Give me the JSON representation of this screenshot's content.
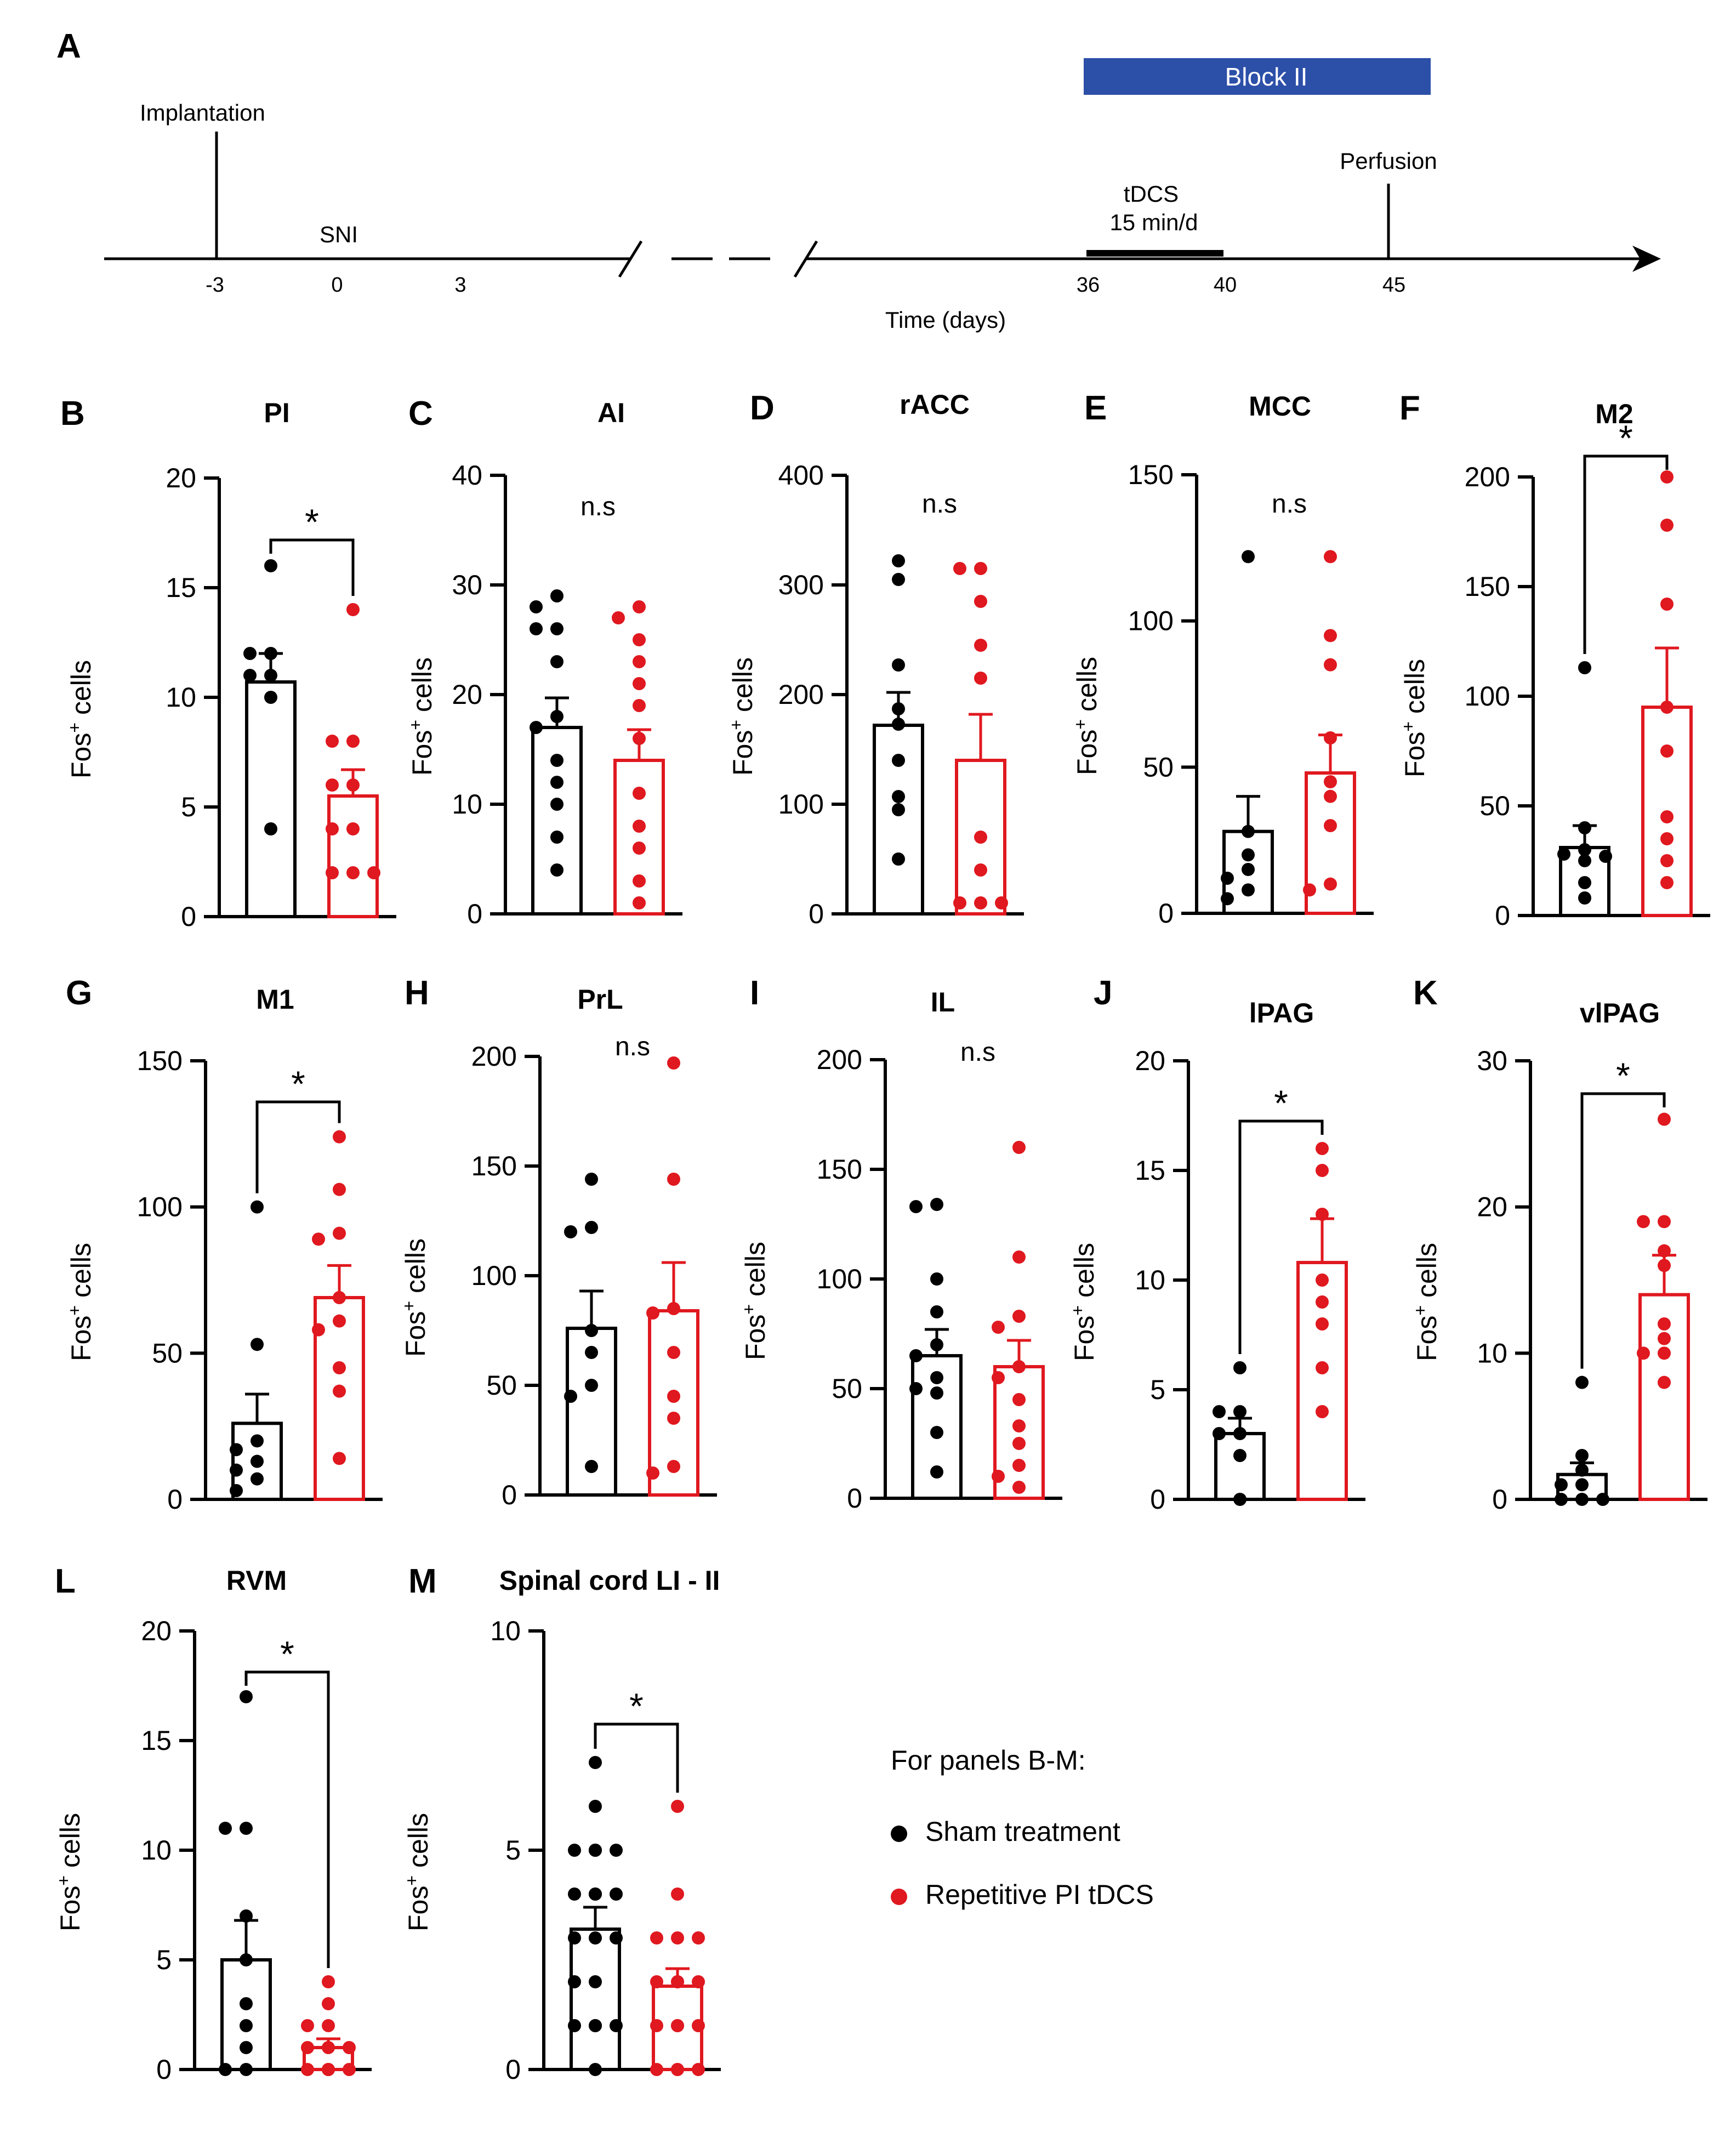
{
  "colors": {
    "sham": "#000000",
    "tdcs": "#e0181f",
    "block": "#2c4fa8",
    "tdcs_label": "#2b4aa3",
    "red_label": "#d8262b"
  },
  "timeline": {
    "panel_letter": "A",
    "block_label": "Block II",
    "implantation_label": "Implantation",
    "sni_label": "SNI",
    "tdcs_label": "tDCS",
    "tdcs_sub": "15 min/d",
    "perfusion_label": "Perfusion",
    "xlabel": "Time (days)",
    "ticks": [
      "-3",
      "0",
      "3",
      "36",
      "40",
      "45"
    ]
  },
  "legend": {
    "title": "For panels B-M:",
    "sham": "Sham treatment",
    "tdcs": "Repetitive PI tDCS"
  },
  "chart_data": [
    {
      "letter": "B",
      "title": "PI",
      "type": "bar",
      "ylabel": "Fos",
      "ylabel_sup": "+",
      "ylabel_rest": " cells",
      "ylim": [
        0,
        20
      ],
      "yticks": [
        0,
        5,
        10,
        15,
        20
      ],
      "sig": "*",
      "categories": [
        "Sham treatment",
        "Repetitive PI tDCS"
      ],
      "series": [
        {
          "name": "Sham treatment",
          "mean": 10.7,
          "sem": 1.3,
          "points": [
            16,
            12,
            12,
            11,
            11,
            10,
            4
          ]
        },
        {
          "name": "Repetitive PI tDCS",
          "mean": 5.5,
          "sem": 1.2,
          "points": [
            14,
            8,
            8,
            6,
            6,
            4,
            4,
            2,
            2,
            2
          ]
        }
      ]
    },
    {
      "letter": "C",
      "title": "AI",
      "type": "bar",
      "ylabel": "Fos",
      "ylabel_sup": "+",
      "ylabel_rest": " cells",
      "ylim": [
        0,
        40
      ],
      "yticks": [
        0,
        10,
        20,
        30,
        40
      ],
      "sig": "n.s",
      "categories": [
        "Sham treatment",
        "Repetitive PI tDCS"
      ],
      "series": [
        {
          "name": "Sham treatment",
          "mean": 17,
          "sem": 2.7,
          "points": [
            29,
            28,
            26,
            26,
            23,
            18,
            17,
            14,
            12,
            10,
            7,
            4
          ]
        },
        {
          "name": "Repetitive PI tDCS",
          "mean": 14,
          "sem": 2.8,
          "points": [
            28,
            27,
            25,
            23,
            21,
            19,
            16,
            11,
            8,
            6,
            3,
            1
          ]
        }
      ]
    },
    {
      "letter": "D",
      "title": "rACC",
      "type": "bar",
      "ylabel": "Fos",
      "ylabel_sup": "+",
      "ylabel_rest": " cells",
      "ylim": [
        0,
        400
      ],
      "yticks": [
        0,
        100,
        200,
        300,
        400
      ],
      "sig": "n.s",
      "categories": [
        "Sham treatment",
        "Repetitive PI tDCS"
      ],
      "series": [
        {
          "name": "Sham treatment",
          "mean": 172,
          "sem": 30,
          "points": [
            322,
            305,
            227,
            187,
            173,
            140,
            107,
            95,
            50
          ]
        },
        {
          "name": "Repetitive PI tDCS",
          "mean": 140,
          "sem": 42,
          "points": [
            315,
            315,
            285,
            245,
            215,
            70,
            40,
            10,
            10,
            10
          ]
        }
      ]
    },
    {
      "letter": "E",
      "title": "MCC",
      "type": "bar",
      "ylabel": "Fos",
      "ylabel_sup": "+",
      "ylabel_rest": " cells",
      "ylim": [
        0,
        150
      ],
      "yticks": [
        0,
        50,
        100,
        150
      ],
      "sig": "n.s",
      "categories": [
        "Sham treatment",
        "Repetitive PI tDCS"
      ],
      "series": [
        {
          "name": "Sham treatment",
          "mean": 28,
          "sem": 12,
          "points": [
            122,
            28,
            20,
            15,
            12,
            8,
            5
          ]
        },
        {
          "name": "Repetitive PI tDCS",
          "mean": 48,
          "sem": 13,
          "points": [
            122,
            95,
            85,
            60,
            45,
            40,
            30,
            10,
            8
          ]
        }
      ]
    },
    {
      "letter": "F",
      "title": "M2",
      "type": "bar",
      "ylabel": "Fos",
      "ylabel_sup": "+",
      "ylabel_rest": " cells",
      "ylim": [
        0,
        200
      ],
      "yticks": [
        0,
        50,
        100,
        150,
        200
      ],
      "sig": "*",
      "categories": [
        "Sham treatment",
        "Repetitive PI tDCS"
      ],
      "series": [
        {
          "name": "Sham treatment",
          "mean": 31,
          "sem": 10,
          "points": [
            113,
            40,
            30,
            28,
            27,
            25,
            15,
            8
          ]
        },
        {
          "name": "Repetitive PI tDCS",
          "mean": 95,
          "sem": 27,
          "points": [
            200,
            178,
            142,
            95,
            75,
            45,
            35,
            25,
            15
          ]
        }
      ]
    },
    {
      "letter": "G",
      "title": "M1",
      "type": "bar",
      "ylabel": "Fos",
      "ylabel_sup": "+",
      "ylabel_rest": " cells",
      "ylim": [
        0,
        150
      ],
      "yticks": [
        0,
        50,
        100,
        150
      ],
      "sig": "*",
      "categories": [
        "Sham treatment",
        "Repetitive PI tDCS"
      ],
      "series": [
        {
          "name": "Sham treatment",
          "mean": 26,
          "sem": 10,
          "points": [
            100,
            53,
            20,
            17,
            13,
            10,
            7,
            3
          ]
        },
        {
          "name": "Repetitive PI tDCS",
          "mean": 69,
          "sem": 11,
          "points": [
            124,
            106,
            91,
            89,
            69,
            61,
            58,
            45,
            37,
            14
          ]
        }
      ]
    },
    {
      "letter": "H",
      "title": "PrL",
      "type": "bar",
      "ylabel": "Fos",
      "ylabel_sup": "+",
      "ylabel_rest": " cells",
      "ylim": [
        0,
        200
      ],
      "yticks": [
        0,
        50,
        100,
        150,
        200
      ],
      "sig": "n.s",
      "categories": [
        "Sham treatment",
        "Repetitive PI tDCS"
      ],
      "series": [
        {
          "name": "Sham treatment",
          "mean": 76,
          "sem": 17,
          "points": [
            144,
            122,
            120,
            75,
            65,
            50,
            45,
            13
          ]
        },
        {
          "name": "Repetitive PI tDCS",
          "mean": 84,
          "sem": 22,
          "points": [
            197,
            144,
            85,
            83,
            65,
            45,
            35,
            13,
            10
          ]
        }
      ]
    },
    {
      "letter": "I",
      "title": "IL",
      "type": "bar",
      "ylabel": "Fos",
      "ylabel_sup": "+",
      "ylabel_rest": " cells",
      "ylim": [
        0,
        200
      ],
      "yticks": [
        0,
        50,
        100,
        150,
        200
      ],
      "sig": "n.s",
      "categories": [
        "Sham treatment",
        "Repetitive PI tDCS"
      ],
      "series": [
        {
          "name": "Sham treatment",
          "mean": 65,
          "sem": 12,
          "points": [
            134,
            133,
            100,
            85,
            70,
            65,
            55,
            50,
            48,
            30,
            12
          ]
        },
        {
          "name": "Repetitive PI tDCS",
          "mean": 60,
          "sem": 12,
          "points": [
            160,
            110,
            83,
            78,
            60,
            55,
            45,
            33,
            25,
            15,
            10,
            5
          ]
        }
      ]
    },
    {
      "letter": "J",
      "title": "lPAG",
      "type": "bar",
      "ylabel": "Fos",
      "ylabel_sup": "+",
      "ylabel_rest": " cells",
      "ylim": [
        0,
        20
      ],
      "yticks": [
        0,
        5,
        10,
        15,
        20
      ],
      "sig": "*",
      "categories": [
        "Sham treatment",
        "Repetitive PI tDCS"
      ],
      "series": [
        {
          "name": "Sham treatment",
          "mean": 3,
          "sem": 0.7,
          "points": [
            6,
            4,
            4,
            3,
            3,
            2,
            0
          ]
        },
        {
          "name": "Repetitive PI tDCS",
          "mean": 10.8,
          "sem": 2,
          "points": [
            16,
            15,
            13,
            10,
            9,
            8,
            6,
            4
          ]
        }
      ]
    },
    {
      "letter": "K",
      "title": "vlPAG",
      "type": "bar",
      "ylabel": "Fos",
      "ylabel_sup": "+",
      "ylabel_rest": " cells",
      "ylim": [
        0,
        30
      ],
      "yticks": [
        0,
        10,
        20,
        30
      ],
      "sig": "*",
      "categories": [
        "Sham treatment",
        "Repetitive PI tDCS"
      ],
      "series": [
        {
          "name": "Sham treatment",
          "mean": 1.7,
          "sem": 0.8,
          "points": [
            8,
            3,
            2,
            1,
            1,
            0,
            0,
            0
          ]
        },
        {
          "name": "Repetitive PI tDCS",
          "mean": 14,
          "sem": 2.7,
          "points": [
            26,
            19,
            19,
            17,
            16,
            12,
            11,
            10,
            10,
            8
          ]
        }
      ]
    },
    {
      "letter": "L",
      "title": "RVM",
      "type": "bar",
      "ylabel": "Fos",
      "ylabel_sup": "+",
      "ylabel_rest": " cells",
      "ylim": [
        0,
        20
      ],
      "yticks": [
        0,
        5,
        10,
        15,
        20
      ],
      "sig": "*",
      "categories": [
        "Sham treatment",
        "Repetitive PI tDCS"
      ],
      "series": [
        {
          "name": "Sham treatment",
          "mean": 5,
          "sem": 1.8,
          "points": [
            17,
            11,
            11,
            7,
            5,
            3,
            2,
            1,
            0,
            0
          ]
        },
        {
          "name": "Repetitive PI tDCS",
          "mean": 1,
          "sem": 0.4,
          "points": [
            4,
            3,
            2,
            2,
            1,
            1,
            1,
            0,
            0,
            0,
            0,
            0
          ]
        }
      ]
    },
    {
      "letter": "M",
      "title": "Spinal cord LI - II",
      "type": "bar",
      "ylabel": "Fos",
      "ylabel_sup": "+",
      "ylabel_rest": " cells",
      "ylim": [
        0,
        10
      ],
      "yticks": [
        0,
        5,
        10
      ],
      "sig": "*",
      "categories": [
        "Sham treatment",
        "Repetitive PI tDCS"
      ],
      "series": [
        {
          "name": "Sham treatment",
          "mean": 3.2,
          "sem": 0.5,
          "points": [
            7,
            6,
            5,
            5,
            5,
            5,
            5,
            4,
            4,
            4,
            4,
            3,
            3,
            3,
            2,
            2,
            1,
            1,
            1,
            1,
            0
          ]
        },
        {
          "name": "Repetitive PI tDCS",
          "mean": 1.9,
          "sem": 0.4,
          "points": [
            6,
            4,
            3,
            3,
            3,
            2,
            2,
            2,
            2,
            1,
            1,
            1,
            1,
            0,
            0,
            0,
            0
          ]
        }
      ]
    }
  ]
}
